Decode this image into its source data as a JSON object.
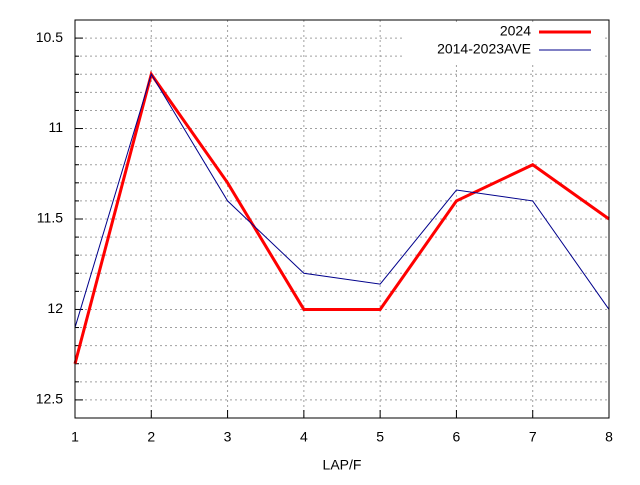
{
  "chart_data": {
    "type": "line",
    "x_label": "LAP/F",
    "x": [
      1,
      2,
      3,
      4,
      5,
      6,
      7,
      8
    ],
    "series": [
      {
        "name": "2024",
        "color": "#ff0000",
        "width": 3,
        "values": [
          12.3,
          10.7,
          11.3,
          12.0,
          12.0,
          11.4,
          11.2,
          11.5
        ]
      },
      {
        "name": "2014-2023AVE",
        "color": "#00008b",
        "width": 1,
        "values": [
          12.1,
          10.7,
          11.4,
          11.8,
          11.86,
          11.34,
          11.4,
          12.0
        ]
      }
    ],
    "xlim": [
      1,
      8
    ],
    "xticks": [
      1,
      2,
      3,
      4,
      5,
      6,
      7,
      8
    ],
    "ylim": [
      10.4,
      12.6
    ],
    "y_inverted": true,
    "yticks": [
      10.5,
      11,
      11.5,
      12,
      12.5
    ],
    "yminorticks": [
      10.6,
      10.7,
      10.8,
      10.9,
      11.1,
      11.2,
      11.3,
      11.4,
      11.6,
      11.7,
      11.8,
      11.9,
      12.1,
      12.2,
      12.3,
      12.4
    ],
    "grid": true,
    "legend": "top-right"
  }
}
